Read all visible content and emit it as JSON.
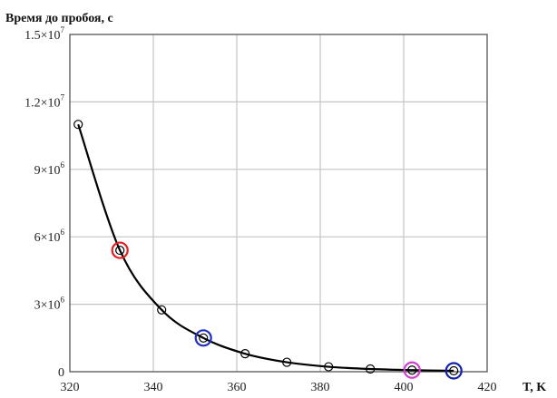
{
  "chart_data": {
    "type": "line",
    "ylabel": "Время до пробоя, с",
    "xlabel": "T, K",
    "xlim": [
      320,
      420
    ],
    "ylim": [
      0,
      15000000
    ],
    "grid": true,
    "x_ticks": [
      {
        "value": 320,
        "label": "320"
      },
      {
        "value": 340,
        "label": "340"
      },
      {
        "value": 360,
        "label": "360"
      },
      {
        "value": 380,
        "label": "380"
      },
      {
        "value": 400,
        "label": "400"
      },
      {
        "value": 420,
        "label": "420"
      }
    ],
    "y_ticks": [
      {
        "value": 0,
        "label": "0",
        "mant": "0",
        "exp": ""
      },
      {
        "value": 3000000,
        "label": "3×10^6",
        "mant": "3×10",
        "exp": "6"
      },
      {
        "value": 6000000,
        "label": "6×10^6",
        "mant": "6×10",
        "exp": "6"
      },
      {
        "value": 9000000,
        "label": "9×10^6",
        "mant": "9×10",
        "exp": "6"
      },
      {
        "value": 12000000,
        "label": "1.2×10^7",
        "mant": "1.2×10",
        "exp": "7"
      },
      {
        "value": 15000000,
        "label": "1.5×10^7",
        "mant": "1.5×10",
        "exp": "7"
      }
    ],
    "series": [
      {
        "x": [
          322,
          332,
          342,
          352,
          362,
          372,
          382,
          392,
          402,
          412
        ],
        "y": [
          11000000,
          5400000,
          2750000,
          1500000,
          800000,
          420000,
          220000,
          120000,
          70000,
          40000
        ],
        "color": "#000000"
      }
    ],
    "highlighted_points": [
      {
        "x": 332,
        "y": 5400000,
        "color": "#e02020"
      },
      {
        "x": 352,
        "y": 1500000,
        "color": "#2030c0"
      },
      {
        "x": 402,
        "y": 70000,
        "color": "#d040d0"
      },
      {
        "x": 412,
        "y": 40000,
        "color": "#1020b0"
      }
    ]
  }
}
